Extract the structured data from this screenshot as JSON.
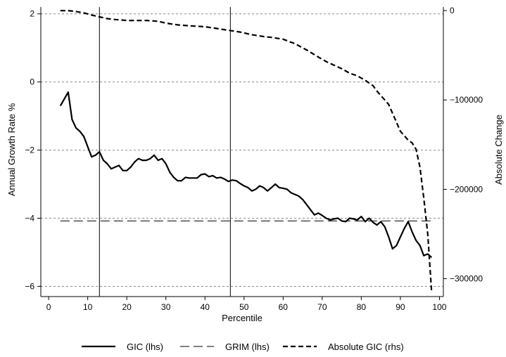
{
  "chart_data": {
    "type": "line",
    "xlabel": "Percentile",
    "ylabel_left": "Annual Growth Rate %",
    "ylabel_right": "Absolute Change",
    "x_ticks": [
      "0",
      "10",
      "20",
      "30",
      "40",
      "50",
      "60",
      "70",
      "80",
      "90",
      "100"
    ],
    "y_left_ticks": [
      "2",
      "0",
      "−2",
      "−4",
      "−6"
    ],
    "y_right_ticks": [
      "0",
      "−100000",
      "−200000",
      "−300000"
    ],
    "xlim": [
      -2,
      101
    ],
    "ylim_left": [
      -6.3,
      2.2
    ],
    "ylim_right": [
      -320000,
      4000
    ],
    "y_left_tick_values": [
      2,
      0,
      -2,
      -4,
      -6
    ],
    "y_right_tick_values": [
      0,
      -100000,
      -200000,
      -300000
    ],
    "x_tick_values": [
      0,
      10,
      20,
      30,
      40,
      50,
      60,
      70,
      80,
      90,
      100
    ],
    "grid": "horizontal dashed at left-axis ticks",
    "vertical_lines": [
      13,
      46.5
    ],
    "legend_position": "bottom",
    "series": [
      {
        "name": "GIC (lhs)",
        "axis": "left",
        "style": "solid",
        "x": [
          3,
          4,
          5,
          6,
          7,
          8,
          9,
          10,
          11,
          12,
          13,
          14,
          15,
          16,
          17,
          18,
          19,
          20,
          21,
          22,
          23,
          24,
          25,
          26,
          27,
          28,
          29,
          30,
          31,
          32,
          33,
          34,
          35,
          36,
          37,
          38,
          39,
          40,
          41,
          42,
          43,
          44,
          45,
          46,
          47,
          48,
          49,
          50,
          51,
          52,
          53,
          54,
          55,
          56,
          57,
          58,
          59,
          60,
          61,
          62,
          63,
          64,
          65,
          66,
          67,
          68,
          69,
          70,
          71,
          72,
          73,
          74,
          75,
          76,
          77,
          78,
          79,
          80,
          81,
          82,
          83,
          84,
          85,
          86,
          87,
          88,
          89,
          90,
          91,
          92,
          93,
          94,
          95,
          96,
          97,
          98
        ],
        "values": [
          -0.7,
          -0.5,
          -0.3,
          -1.1,
          -1.35,
          -1.45,
          -1.6,
          -1.9,
          -2.2,
          -2.15,
          -2.05,
          -2.3,
          -2.4,
          -2.55,
          -2.5,
          -2.45,
          -2.6,
          -2.6,
          -2.5,
          -2.35,
          -2.25,
          -2.3,
          -2.3,
          -2.25,
          -2.15,
          -2.3,
          -2.25,
          -2.4,
          -2.65,
          -2.8,
          -2.9,
          -2.9,
          -2.8,
          -2.82,
          -2.82,
          -2.82,
          -2.72,
          -2.7,
          -2.78,
          -2.75,
          -2.82,
          -2.8,
          -2.85,
          -2.92,
          -2.88,
          -2.9,
          -2.98,
          -3.05,
          -3.1,
          -3.2,
          -3.15,
          -3.05,
          -3.1,
          -3.2,
          -3.1,
          -3.0,
          -3.1,
          -3.12,
          -3.15,
          -3.25,
          -3.3,
          -3.35,
          -3.45,
          -3.6,
          -3.75,
          -3.9,
          -3.85,
          -3.92,
          -4.0,
          -4.05,
          -4.02,
          -4.0,
          -4.08,
          -4.1,
          -4.0,
          -4.02,
          -4.05,
          -3.95,
          -4.1,
          -4.0,
          -4.12,
          -4.2,
          -4.1,
          -4.25,
          -4.55,
          -4.9,
          -4.8,
          -4.55,
          -4.3,
          -4.1,
          -4.4,
          -4.65,
          -4.8,
          -5.1,
          -5.05,
          -5.15
        ]
      },
      {
        "name": "GRIM (lhs)",
        "axis": "left",
        "style": "long-dash",
        "x": [
          3,
          98
        ],
        "values": [
          -4.08,
          -4.08
        ]
      },
      {
        "name": "Absolute GIC (rhs)",
        "axis": "right",
        "style": "dashed",
        "x": [
          3,
          5,
          7,
          9,
          11,
          13,
          15,
          17,
          20,
          25,
          28,
          30,
          33,
          36,
          40,
          43,
          46,
          49,
          52,
          55,
          57,
          60,
          63,
          66,
          69,
          71,
          73,
          75,
          77,
          79,
          81,
          83,
          84,
          85,
          86,
          87,
          88,
          89,
          90,
          91,
          92,
          93,
          94,
          95,
          96,
          97,
          98
        ],
        "values": [
          0,
          0,
          -1000,
          -2500,
          -5000,
          -7000,
          -9000,
          -10000,
          -11000,
          -11000,
          -12000,
          -14000,
          -16000,
          -17000,
          -18000,
          -20000,
          -22000,
          -24000,
          -27000,
          -29000,
          -30000,
          -32000,
          -37000,
          -44000,
          -52000,
          -57000,
          -61000,
          -65000,
          -70000,
          -73000,
          -78000,
          -84000,
          -90000,
          -95000,
          -100000,
          -105000,
          -115000,
          -125000,
          -135000,
          -140000,
          -145000,
          -148000,
          -155000,
          -175000,
          -210000,
          -250000,
          -315000
        ]
      }
    ]
  }
}
